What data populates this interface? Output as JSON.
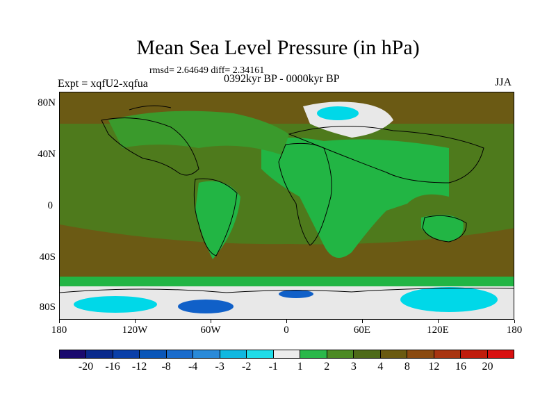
{
  "title": "Mean Sea Level Pressure (in hPa)",
  "stats": "rmsd= 2.64649  diff= 2.34161",
  "experiment": "Expt = xqfU2-xqfua",
  "period": "0392kyr BP - 0000kyr BP",
  "season": "JJA",
  "colors": {
    "dark_olive": "#6b5a14",
    "olive": "#4e7a1c",
    "green": "#3a9a2c",
    "bright_green": "#22b544",
    "white": "#e8e8e8",
    "cyan": "#00d8e8",
    "blue": "#1060c8",
    "land_outline": "#000000"
  },
  "map": {
    "y_axis_labels": [
      "80N",
      "40N",
      "0",
      "40S",
      "80S"
    ],
    "x_axis_labels": [
      "180",
      "120W",
      "60W",
      "0",
      "60E",
      "120E",
      "180"
    ]
  },
  "colorbar": {
    "colors": [
      "#1a0a6e",
      "#0a2a8c",
      "#0a3fa8",
      "#0a56b8",
      "#1a6ccc",
      "#2a8ad8",
      "#10b8e0",
      "#20dce8",
      "#ececec",
      "#2ab84a",
      "#4c8a24",
      "#4e6a18",
      "#6a5a10",
      "#8a4a10",
      "#a83410",
      "#c01c0c",
      "#d81010"
    ],
    "labels": [
      "-20",
      "-16",
      "-12",
      "-8",
      "-4",
      "-3",
      "-2",
      "-1",
      "1",
      "2",
      "3",
      "4",
      "8",
      "12",
      "16",
      "20"
    ]
  }
}
